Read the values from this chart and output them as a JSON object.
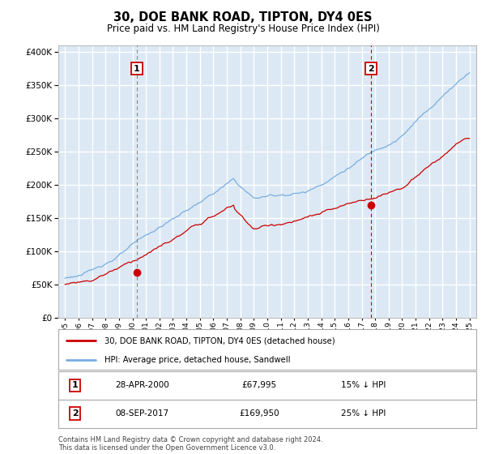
{
  "title": "30, DOE BANK ROAD, TIPTON, DY4 0ES",
  "subtitle": "Price paid vs. HM Land Registry's House Price Index (HPI)",
  "hpi_label": "HPI: Average price, detached house, Sandwell",
  "price_label": "30, DOE BANK ROAD, TIPTON, DY4 0ES (detached house)",
  "legend_entry1_date": "28-APR-2000",
  "legend_entry1_price": "£67,995",
  "legend_entry1_note": "15% ↓ HPI",
  "legend_entry2_date": "08-SEP-2017",
  "legend_entry2_price": "£169,950",
  "legend_entry2_note": "25% ↓ HPI",
  "footnote": "Contains HM Land Registry data © Crown copyright and database right 2024.\nThis data is licensed under the Open Government Licence v3.0.",
  "ylim": [
    0,
    400000
  ],
  "background_color": "#dce9f5",
  "grid_color": "#ffffff",
  "hpi_color": "#7aade0",
  "price_color": "#cc0000",
  "marker1_year": 2000.33,
  "marker1_value": 67995,
  "marker2_year": 2017.69,
  "marker2_value": 169950,
  "vline1_style": "dashed_gray",
  "vline2_style": "dashed_red"
}
